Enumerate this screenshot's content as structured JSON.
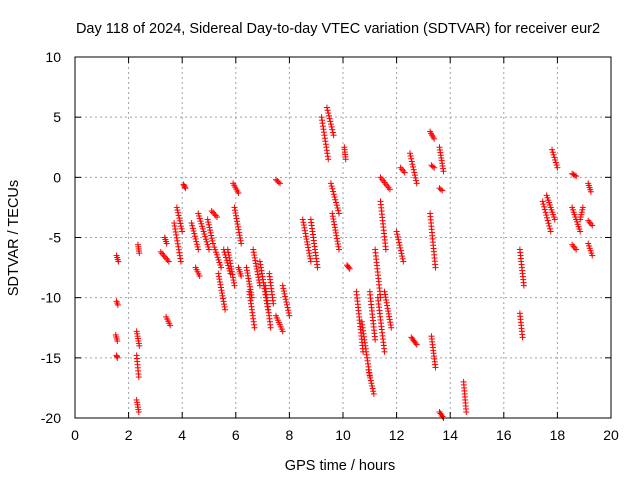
{
  "chart_data": {
    "type": "scatter",
    "title": "Day 118 of 2024, Sidereal Day-to-day VTEC variation (SDTVAR) for receiver eur2",
    "xlabel": "GPS time / hours",
    "ylabel": "SDTVAR / TECUs",
    "xlim": [
      0,
      20
    ],
    "ylim": [
      -20,
      10
    ],
    "xticks": [
      0,
      2,
      4,
      6,
      8,
      10,
      12,
      14,
      16,
      18,
      20
    ],
    "yticks": [
      -20,
      -15,
      -10,
      -5,
      0,
      5,
      10
    ],
    "grid": true,
    "marker": "+",
    "color": "#ff0000",
    "segments": [
      {
        "x0": 1.55,
        "x1": 1.62,
        "y0": -6.5,
        "y1": -7.0
      },
      {
        "x0": 1.55,
        "x1": 1.6,
        "y0": -10.3,
        "y1": -10.6
      },
      {
        "x0": 1.52,
        "x1": 1.58,
        "y0": -13.1,
        "y1": -13.6
      },
      {
        "x0": 1.55,
        "x1": 1.58,
        "y0": -14.8,
        "y1": -15.0
      },
      {
        "x0": 2.3,
        "x1": 2.4,
        "y0": -12.8,
        "y1": -14.0
      },
      {
        "x0": 2.3,
        "x1": 2.38,
        "y0": -14.8,
        "y1": -16.6
      },
      {
        "x0": 2.3,
        "x1": 2.38,
        "y0": -18.5,
        "y1": -19.5
      },
      {
        "x0": 2.35,
        "x1": 2.4,
        "y0": -5.6,
        "y1": -6.3
      },
      {
        "x0": 3.2,
        "x1": 3.5,
        "y0": -6.2,
        "y1": -7.0
      },
      {
        "x0": 3.4,
        "x1": 3.55,
        "y0": -11.6,
        "y1": -12.3
      },
      {
        "x0": 3.35,
        "x1": 3.42,
        "y0": -5.0,
        "y1": -5.5
      },
      {
        "x0": 3.7,
        "x1": 3.95,
        "y0": -3.8,
        "y1": -7.0
      },
      {
        "x0": 3.8,
        "x1": 4.0,
        "y0": -2.5,
        "y1": -4.5
      },
      {
        "x0": 4.05,
        "x1": 4.12,
        "y0": -0.6,
        "y1": -0.9
      },
      {
        "x0": 4.35,
        "x1": 4.6,
        "y0": -3.8,
        "y1": -6.0
      },
      {
        "x0": 4.5,
        "x1": 4.65,
        "y0": -7.5,
        "y1": -8.2
      },
      {
        "x0": 4.6,
        "x1": 5.0,
        "y0": -3.0,
        "y1": -6.0
      },
      {
        "x0": 4.95,
        "x1": 5.15,
        "y0": -3.5,
        "y1": -5.5
      },
      {
        "x0": 5.1,
        "x1": 5.3,
        "y0": -2.8,
        "y1": -3.3
      },
      {
        "x0": 5.2,
        "x1": 5.45,
        "y0": -5.8,
        "y1": -7.5
      },
      {
        "x0": 5.35,
        "x1": 5.6,
        "y0": -8.0,
        "y1": -11.0
      },
      {
        "x0": 5.55,
        "x1": 5.8,
        "y0": -6.0,
        "y1": -8.0
      },
      {
        "x0": 5.7,
        "x1": 5.95,
        "y0": -6.0,
        "y1": -9.0
      },
      {
        "x0": 5.9,
        "x1": 6.1,
        "y0": -0.5,
        "y1": -1.3
      },
      {
        "x0": 5.95,
        "x1": 6.2,
        "y0": -2.5,
        "y1": -5.5
      },
      {
        "x0": 6.1,
        "x1": 6.2,
        "y0": -7.5,
        "y1": -8.2
      },
      {
        "x0": 6.4,
        "x1": 6.6,
        "y0": -7.5,
        "y1": -10.0
      },
      {
        "x0": 6.5,
        "x1": 6.7,
        "y0": -9.5,
        "y1": -12.5
      },
      {
        "x0": 6.65,
        "x1": 6.9,
        "y0": -6.0,
        "y1": -9.0
      },
      {
        "x0": 6.9,
        "x1": 7.2,
        "y0": -7.0,
        "y1": -11.0
      },
      {
        "x0": 7.1,
        "x1": 7.3,
        "y0": -9.0,
        "y1": -12.5
      },
      {
        "x0": 7.25,
        "x1": 7.4,
        "y0": -8.0,
        "y1": -10.5
      },
      {
        "x0": 7.5,
        "x1": 7.65,
        "y0": -0.2,
        "y1": -0.5
      },
      {
        "x0": 7.5,
        "x1": 7.75,
        "y0": -11.5,
        "y1": -12.8
      },
      {
        "x0": 7.75,
        "x1": 8.0,
        "y0": -9.0,
        "y1": -11.5
      },
      {
        "x0": 8.5,
        "x1": 8.8,
        "y0": -3.5,
        "y1": -7.0
      },
      {
        "x0": 8.8,
        "x1": 9.05,
        "y0": -3.5,
        "y1": -7.5
      },
      {
        "x0": 9.2,
        "x1": 9.45,
        "y0": 5.0,
        "y1": 1.5
      },
      {
        "x0": 9.4,
        "x1": 9.65,
        "y0": 5.8,
        "y1": 3.5
      },
      {
        "x0": 9.55,
        "x1": 9.85,
        "y0": -0.5,
        "y1": -3.0
      },
      {
        "x0": 9.6,
        "x1": 9.85,
        "y0": -3.0,
        "y1": -6.0
      },
      {
        "x0": 10.05,
        "x1": 10.1,
        "y0": 2.5,
        "y1": 1.5
      },
      {
        "x0": 10.15,
        "x1": 10.25,
        "y0": -7.3,
        "y1": -7.6
      },
      {
        "x0": 10.5,
        "x1": 10.75,
        "y0": -9.5,
        "y1": -14.5
      },
      {
        "x0": 10.7,
        "x1": 11.0,
        "y0": -12.0,
        "y1": -16.5
      },
      {
        "x0": 10.95,
        "x1": 11.15,
        "y0": -16.0,
        "y1": -18.0
      },
      {
        "x0": 11.0,
        "x1": 11.2,
        "y0": -9.5,
        "y1": -13.5
      },
      {
        "x0": 11.2,
        "x1": 11.4,
        "y0": -6.0,
        "y1": -10.0
      },
      {
        "x0": 11.3,
        "x1": 11.55,
        "y0": -10.0,
        "y1": -14.5
      },
      {
        "x0": 11.4,
        "x1": 11.6,
        "y0": -2.0,
        "y1": -6.0
      },
      {
        "x0": 11.4,
        "x1": 11.75,
        "y0": 0.0,
        "y1": -1.0
      },
      {
        "x0": 11.55,
        "x1": 11.8,
        "y0": -9.5,
        "y1": -12.5
      },
      {
        "x0": 12.0,
        "x1": 12.25,
        "y0": -4.5,
        "y1": -7.0
      },
      {
        "x0": 12.15,
        "x1": 12.3,
        "y0": 0.8,
        "y1": 0.4
      },
      {
        "x0": 12.5,
        "x1": 12.75,
        "y0": 2.0,
        "y1": -0.5
      },
      {
        "x0": 12.55,
        "x1": 12.75,
        "y0": -13.3,
        "y1": -13.9
      },
      {
        "x0": 13.25,
        "x1": 13.4,
        "y0": 3.8,
        "y1": 3.2
      },
      {
        "x0": 13.3,
        "x1": 13.4,
        "y0": 1.0,
        "y1": 0.8
      },
      {
        "x0": 13.25,
        "x1": 13.45,
        "y0": -3.0,
        "y1": -7.5
      },
      {
        "x0": 13.3,
        "x1": 13.45,
        "y0": -13.2,
        "y1": -15.8
      },
      {
        "x0": 13.6,
        "x1": 13.75,
        "y0": 2.5,
        "y1": 0.5
      },
      {
        "x0": 13.6,
        "x1": 13.7,
        "y0": -0.9,
        "y1": -1.1
      },
      {
        "x0": 13.6,
        "x1": 13.75,
        "y0": -19.5,
        "y1": -20.0
      },
      {
        "x0": 14.5,
        "x1": 14.6,
        "y0": -17.0,
        "y1": -19.5
      },
      {
        "x0": 16.6,
        "x1": 16.75,
        "y0": -6.0,
        "y1": -9.0
      },
      {
        "x0": 16.6,
        "x1": 16.7,
        "y0": -11.3,
        "y1": -13.3
      },
      {
        "x0": 17.45,
        "x1": 17.75,
        "y0": -2.0,
        "y1": -4.5
      },
      {
        "x0": 17.6,
        "x1": 17.9,
        "y0": -1.5,
        "y1": -3.5
      },
      {
        "x0": 17.8,
        "x1": 18.0,
        "y0": 2.3,
        "y1": 0.8
      },
      {
        "x0": 18.55,
        "x1": 18.7,
        "y0": 0.3,
        "y1": 0.1
      },
      {
        "x0": 18.55,
        "x1": 18.85,
        "y0": -2.5,
        "y1": -4.5
      },
      {
        "x0": 18.55,
        "x1": 18.7,
        "y0": -5.6,
        "y1": -6.0
      },
      {
        "x0": 18.85,
        "x1": 18.95,
        "y0": -3.5,
        "y1": -2.5
      },
      {
        "x0": 19.15,
        "x1": 19.25,
        "y0": -0.5,
        "y1": -1.2
      },
      {
        "x0": 19.15,
        "x1": 19.3,
        "y0": -3.6,
        "y1": -4.0
      },
      {
        "x0": 19.15,
        "x1": 19.3,
        "y0": -5.5,
        "y1": -6.5
      }
    ]
  }
}
